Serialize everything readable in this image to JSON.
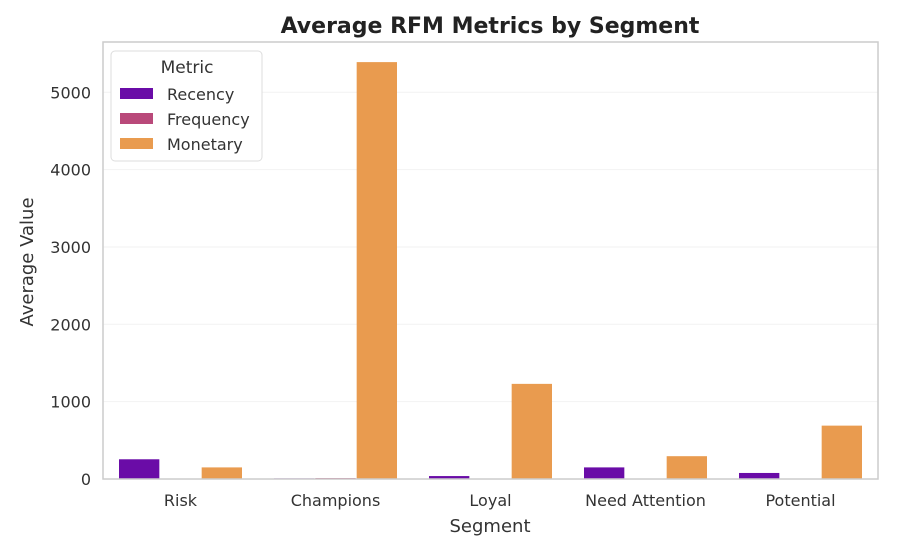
{
  "chart_data": {
    "type": "bar",
    "title": "Average RFM Metrics by Segment",
    "xlabel": "Segment",
    "ylabel": "Average Value",
    "categories": [
      "Risk",
      "Champions",
      "Loyal",
      "Need Attention",
      "Potential"
    ],
    "series": [
      {
        "name": "Recency",
        "color": "#6a0ca7",
        "values": [
          255,
          8,
          38,
          150,
          78
        ]
      },
      {
        "name": "Frequency",
        "color": "#b9497a",
        "values": [
          2,
          12,
          5,
          2,
          2
        ]
      },
      {
        "name": "Monetary",
        "color": "#e99b4f",
        "values": [
          150,
          5390,
          1230,
          295,
          690
        ]
      }
    ],
    "ylim": [
      0,
      5650
    ],
    "yticks": [
      0,
      1000,
      2000,
      3000,
      4000,
      5000
    ],
    "grid": true,
    "legend": {
      "title": "Metric",
      "position": "top-left"
    }
  }
}
